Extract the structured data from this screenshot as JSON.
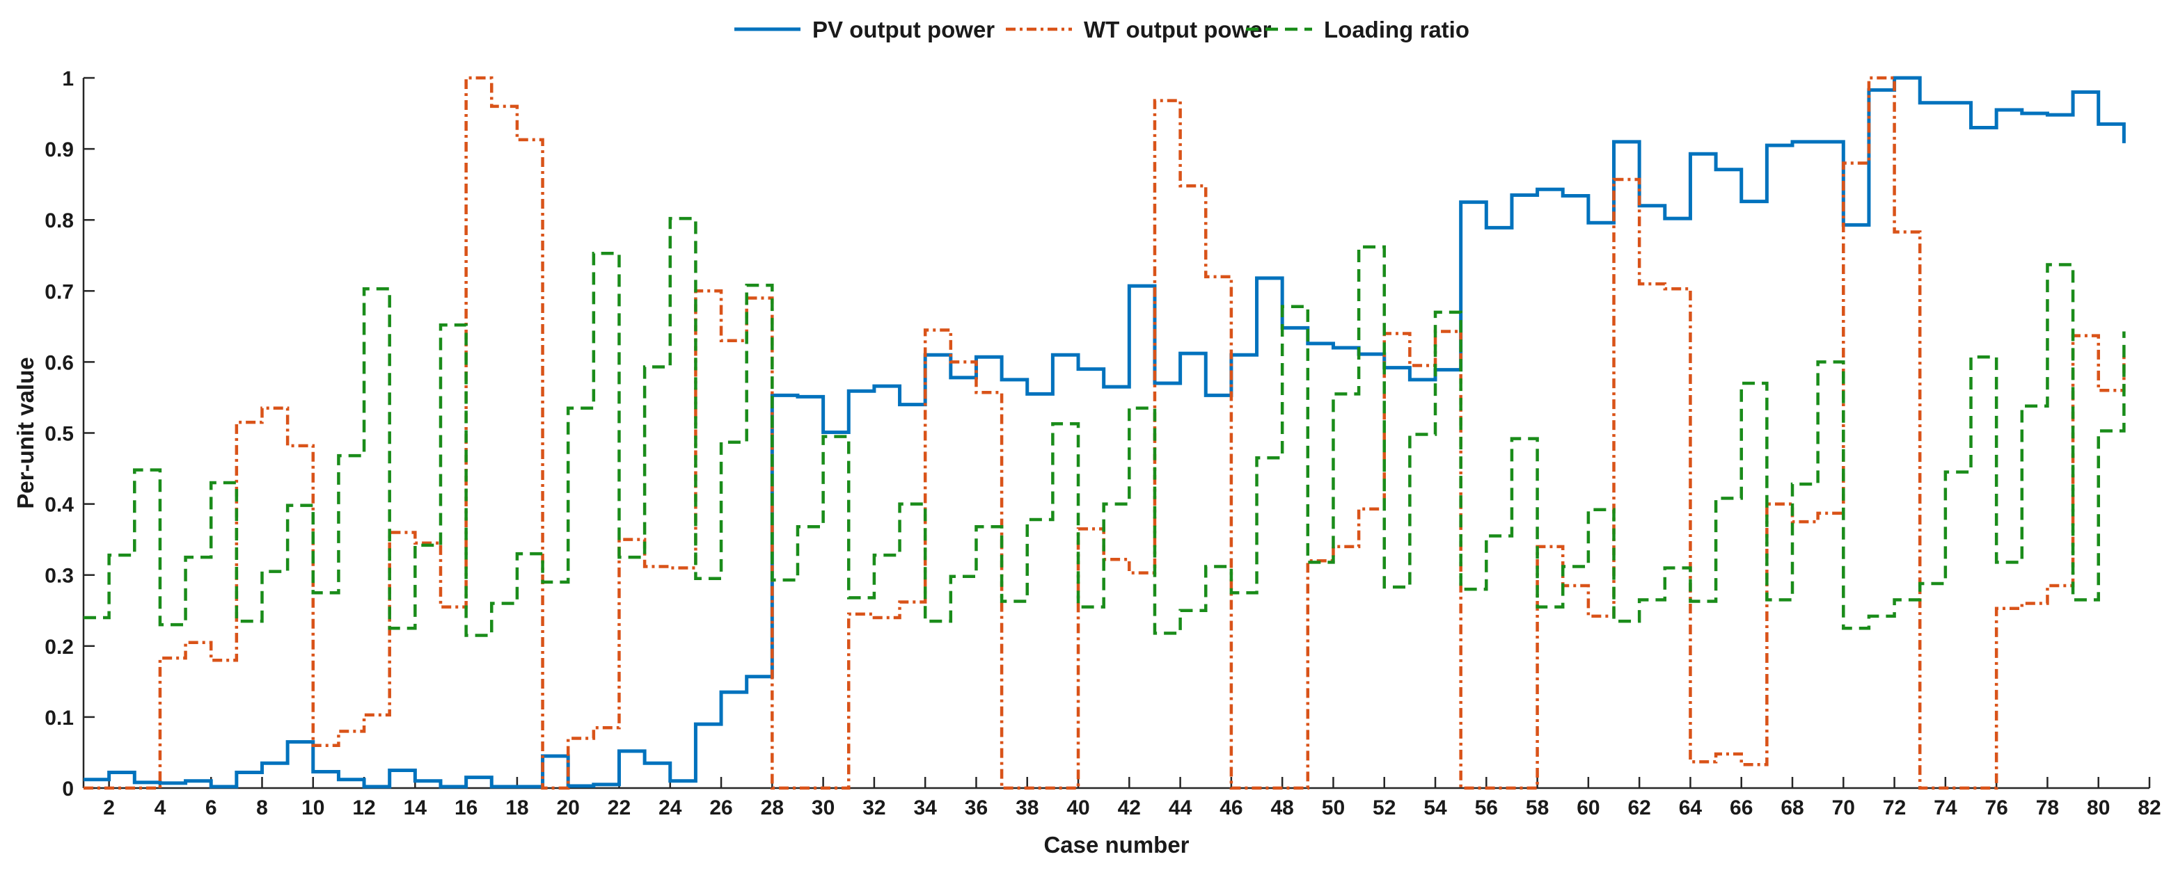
{
  "chart_data": {
    "type": "line",
    "step": true,
    "xlabel": "Case number",
    "ylabel": "Per-unit value",
    "xlim": [
      1,
      82
    ],
    "ylim": [
      0,
      1
    ],
    "xticks": [
      2,
      4,
      6,
      8,
      10,
      12,
      14,
      16,
      18,
      20,
      22,
      24,
      26,
      28,
      30,
      32,
      34,
      36,
      38,
      40,
      42,
      44,
      46,
      48,
      50,
      52,
      54,
      56,
      58,
      60,
      62,
      64,
      66,
      68,
      70,
      72,
      74,
      76,
      78,
      80,
      82
    ],
    "yticks": [
      0,
      0.1,
      0.2,
      0.3,
      0.4,
      0.5,
      0.6,
      0.7,
      0.8,
      0.9,
      1
    ],
    "ytick_labels": [
      "0",
      "0.1",
      "0.2",
      "0.3",
      "0.4",
      "0.5",
      "0.6",
      "0.7",
      "0.8",
      "0.9",
      "1"
    ],
    "legend_position": "top-center",
    "series": [
      {
        "name": "PV output power",
        "color": "#0072BD",
        "dash": "solid",
        "values": [
          0.012,
          0.022,
          0.008,
          0.007,
          0.01,
          0.002,
          0.022,
          0.035,
          0.065,
          0.023,
          0.012,
          0.002,
          0.025,
          0.01,
          0.002,
          0.015,
          0.002,
          0.002,
          0.045,
          0.003,
          0.005,
          0.052,
          0.035,
          0.01,
          0.09,
          0.135,
          0.157,
          0.553,
          0.551,
          0.501,
          0.559,
          0.566,
          0.54,
          0.61,
          0.578,
          0.607,
          0.575,
          0.555,
          0.61,
          0.59,
          0.565,
          0.707,
          0.57,
          0.612,
          0.553,
          0.61,
          0.718,
          0.648,
          0.626,
          0.62,
          0.611,
          0.592,
          0.575,
          0.589,
          0.825,
          0.789,
          0.835,
          0.843,
          0.834,
          0.796,
          0.91,
          0.82,
          0.802,
          0.893,
          0.871,
          0.826,
          0.905,
          0.91,
          0.91,
          0.793,
          0.983,
          1.0,
          0.965,
          0.965,
          0.93,
          0.955,
          0.95,
          0.948,
          0.98,
          0.935,
          0.908
        ]
      },
      {
        "name": "WT output power",
        "color": "#D95319",
        "dash": "dashdot",
        "values": [
          0.0,
          0.0,
          0.0,
          0.183,
          0.205,
          0.18,
          0.515,
          0.535,
          0.482,
          0.06,
          0.08,
          0.103,
          0.36,
          0.345,
          0.255,
          1.0,
          0.96,
          0.913,
          0.0,
          0.07,
          0.085,
          0.35,
          0.312,
          0.31,
          0.7,
          0.63,
          0.69,
          0.0,
          0.0,
          0.0,
          0.245,
          0.24,
          0.262,
          0.645,
          0.6,
          0.557,
          0.0,
          0.0,
          0.0,
          0.365,
          0.322,
          0.303,
          0.968,
          0.848,
          0.72,
          0.0,
          0.0,
          0.0,
          0.32,
          0.34,
          0.393,
          0.64,
          0.595,
          0.643,
          0.0,
          0.0,
          0.0,
          0.34,
          0.285,
          0.242,
          0.857,
          0.71,
          0.703,
          0.037,
          0.048,
          0.033,
          0.4,
          0.375,
          0.387,
          0.88,
          1.0,
          0.783,
          0.0,
          0.0,
          0.0,
          0.253,
          0.26,
          0.285,
          0.637,
          0.56,
          0.61
        ]
      },
      {
        "name": "Loading ratio",
        "color": "#1A8C1A",
        "dash": "dashed",
        "values": [
          0.24,
          0.328,
          0.448,
          0.23,
          0.325,
          0.43,
          0.235,
          0.305,
          0.398,
          0.275,
          0.468,
          0.703,
          0.225,
          0.342,
          0.652,
          0.215,
          0.26,
          0.33,
          0.29,
          0.535,
          0.753,
          0.325,
          0.593,
          0.802,
          0.295,
          0.487,
          0.708,
          0.293,
          0.368,
          0.495,
          0.268,
          0.328,
          0.4,
          0.235,
          0.298,
          0.368,
          0.263,
          0.378,
          0.513,
          0.255,
          0.4,
          0.535,
          0.218,
          0.25,
          0.312,
          0.275,
          0.465,
          0.678,
          0.318,
          0.555,
          0.762,
          0.283,
          0.498,
          0.67,
          0.28,
          0.355,
          0.492,
          0.255,
          0.312,
          0.392,
          0.235,
          0.265,
          0.31,
          0.263,
          0.408,
          0.57,
          0.265,
          0.428,
          0.6,
          0.225,
          0.242,
          0.265,
          0.288,
          0.445,
          0.607,
          0.318,
          0.538,
          0.737,
          0.265,
          0.503,
          0.643
        ]
      }
    ]
  }
}
